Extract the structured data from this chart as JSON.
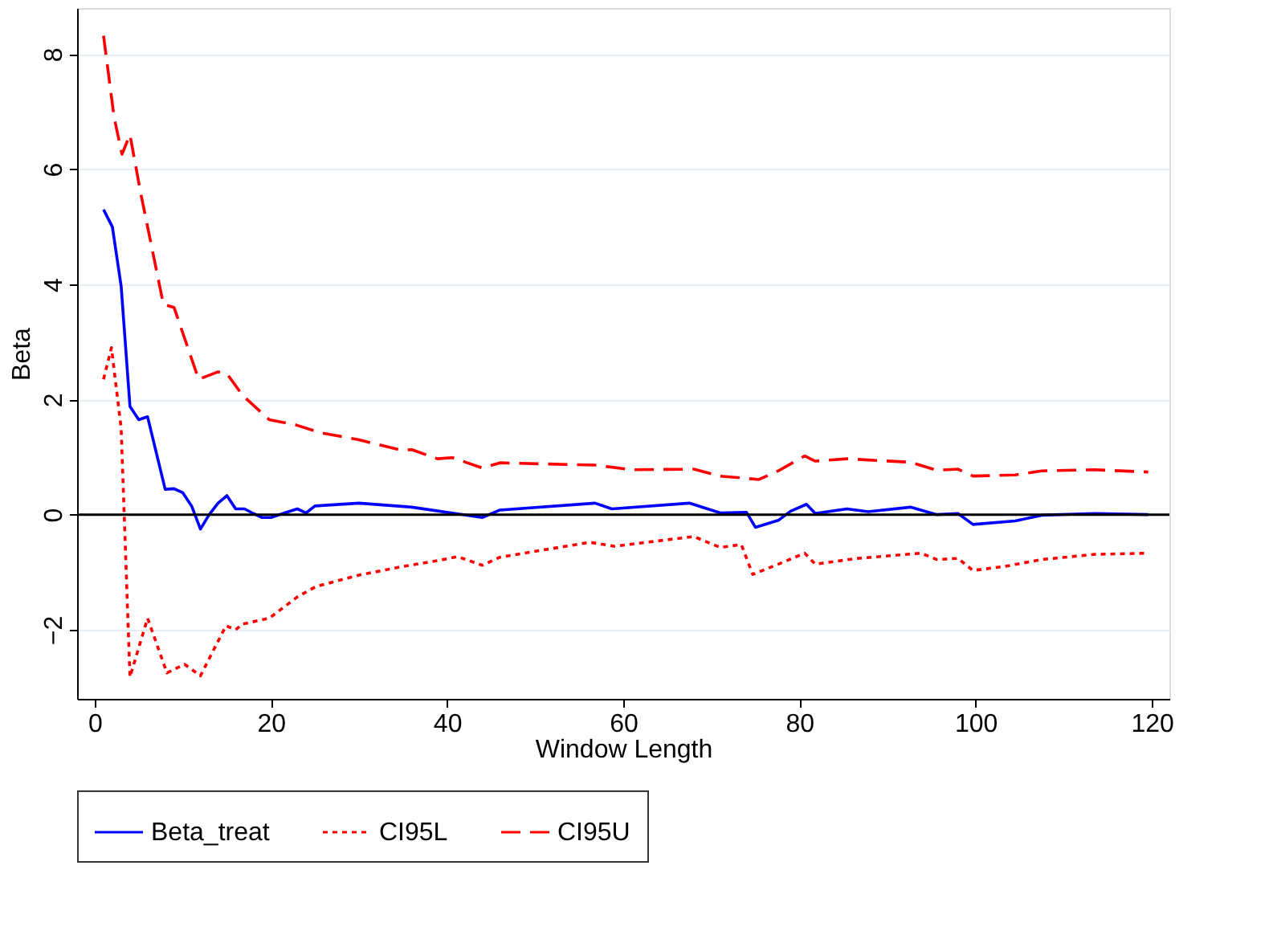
{
  "chart_data": {
    "type": "line",
    "xlabel": "Window Length",
    "ylabel": "Beta",
    "xlim": [
      -2,
      122
    ],
    "ylim": [
      -3.2,
      8.8
    ],
    "xticks": [
      0,
      20,
      40,
      60,
      80,
      100,
      120
    ],
    "yticks": [
      -2,
      0,
      2,
      4,
      6,
      8
    ],
    "grid": "y",
    "legend": "bottom",
    "marker": "none",
    "ref_lines": [
      {
        "axis": "y",
        "value": 0,
        "color": "#000000",
        "line_style": "solid"
      }
    ],
    "series": [
      {
        "name": "Beta_treat",
        "color": "#0000ff",
        "line_style": "solid",
        "x": [
          1,
          2,
          3,
          4,
          5,
          6,
          8,
          9,
          10,
          11,
          12,
          13,
          14,
          15,
          16,
          17,
          18,
          19,
          20,
          22,
          23,
          24,
          25,
          30,
          36,
          44,
          46,
          56.8,
          58.7,
          67.5,
          71,
          74,
          75,
          77.6,
          79,
          80.8,
          81.8,
          85.4,
          87.8,
          92.6,
          95.6,
          98,
          99.7,
          104.5,
          107.5,
          113.5,
          119.6
        ],
        "values": [
          5.3,
          5.0,
          3.97,
          1.88,
          1.65,
          1.7,
          0.44,
          0.45,
          0.38,
          0.15,
          -0.25,
          0.0,
          0.2,
          0.33,
          0.1,
          0.1,
          0.02,
          -0.05,
          -0.05,
          0.05,
          0.1,
          0.03,
          0.15,
          0.2,
          0.13,
          -0.05,
          0.08,
          0.2,
          0.1,
          0.2,
          0.03,
          0.04,
          -0.22,
          -0.1,
          0.06,
          0.18,
          0.02,
          0.1,
          0.05,
          0.13,
          0.0,
          0.02,
          -0.17,
          -0.11,
          -0.01,
          0.02,
          0.0
        ]
      },
      {
        "name": "CI95L",
        "color": "#ff0000",
        "line_style": "dotted",
        "x": [
          1,
          1.9,
          3,
          4,
          6,
          8.2,
          10.2,
          12,
          14.9,
          16,
          16.8,
          19.8,
          23,
          25.1,
          30,
          35,
          38.9,
          41.2,
          44,
          46,
          56.2,
          59,
          68,
          71,
          73.4,
          74.7,
          77.6,
          80.6,
          81.8,
          86.6,
          93.8,
          95.6,
          98,
          99.7,
          103.3,
          107.5,
          113.5,
          119.6
        ],
        "values": [
          2.35,
          2.9,
          1.5,
          -2.82,
          -1.8,
          -2.75,
          -2.6,
          -2.8,
          -1.93,
          -2.0,
          -1.9,
          -1.8,
          -1.43,
          -1.25,
          -1.05,
          -0.9,
          -0.8,
          -0.73,
          -0.88,
          -0.74,
          -0.48,
          -0.55,
          -0.38,
          -0.57,
          -0.52,
          -1.04,
          -0.86,
          -0.67,
          -0.86,
          -0.76,
          -0.67,
          -0.78,
          -0.76,
          -0.97,
          -0.9,
          -0.78,
          -0.69,
          -0.67
        ]
      },
      {
        "name": "CI95U",
        "color": "#ff0000",
        "line_style": "dashed",
        "x": [
          1,
          2.2,
          3.1,
          4,
          5.2,
          7.8,
          9,
          11.8,
          14,
          15,
          16.8,
          19.8,
          22.8,
          25.7,
          30,
          34.8,
          36,
          38.9,
          40.6,
          44,
          46,
          56.8,
          61,
          68,
          71,
          75.4,
          77.6,
          80.6,
          81.8,
          85.4,
          92.6,
          95.6,
          98,
          99.7,
          104.5,
          107.5,
          113.5,
          119.6
        ],
        "values": [
          8.32,
          6.9,
          6.26,
          6.6,
          5.6,
          3.65,
          3.6,
          2.35,
          2.48,
          2.45,
          2.07,
          1.65,
          1.56,
          1.42,
          1.3,
          1.12,
          1.13,
          0.97,
          0.99,
          0.81,
          0.9,
          0.86,
          0.78,
          0.79,
          0.67,
          0.61,
          0.76,
          1.02,
          0.93,
          0.97,
          0.91,
          0.77,
          0.79,
          0.67,
          0.69,
          0.76,
          0.78,
          0.74
        ]
      }
    ]
  }
}
